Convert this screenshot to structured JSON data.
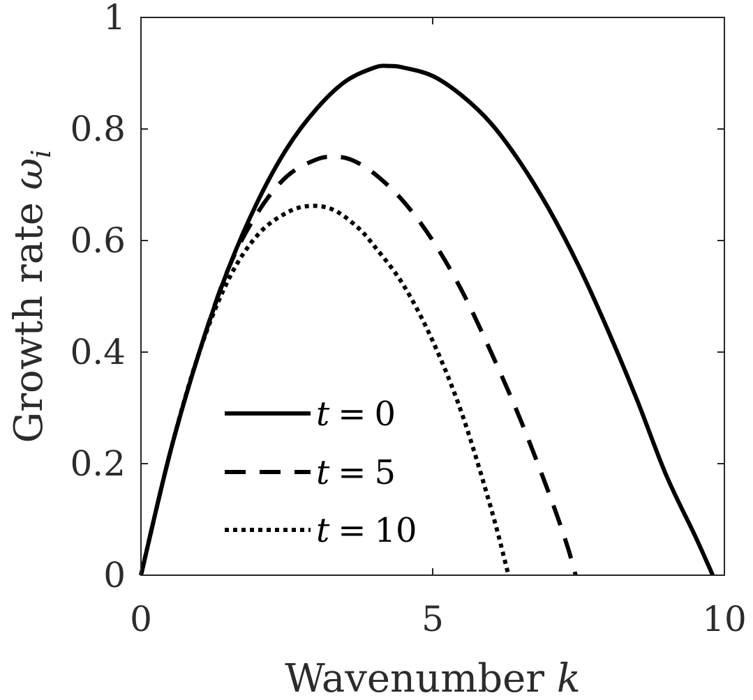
{
  "chart_data": {
    "type": "line",
    "xlabel": {
      "text": "Wavenumber ",
      "symbol": "k"
    },
    "ylabel": {
      "text": "Growth rate ",
      "symbol": "ω",
      "subscript": "i"
    },
    "xlim": [
      0,
      10
    ],
    "ylim": [
      0,
      1
    ],
    "xticks": [
      0,
      5,
      10
    ],
    "xtick_labels": [
      "0",
      "5",
      "10"
    ],
    "yticks": [
      0,
      0.2,
      0.4,
      0.6,
      0.8,
      1
    ],
    "ytick_labels": [
      "0",
      "0.2",
      "0.4",
      "0.6",
      "0.8",
      "1"
    ],
    "grid": false,
    "legend_position": "lower-left",
    "series": [
      {
        "name": "t = 0",
        "var": "t",
        "eq": "=",
        "val": "0",
        "style": "solid",
        "x": [
          0,
          0.5,
          1,
          1.5,
          2,
          2.5,
          3,
          3.5,
          4,
          4.25,
          4.5,
          5,
          5.5,
          6,
          6.5,
          7,
          7.5,
          8,
          8.5,
          9,
          9.5,
          9.8
        ],
        "y": [
          0,
          0.22,
          0.4,
          0.55,
          0.67,
          0.765,
          0.835,
          0.885,
          0.91,
          0.913,
          0.91,
          0.895,
          0.86,
          0.81,
          0.74,
          0.655,
          0.555,
          0.44,
          0.315,
          0.18,
          0.07,
          0
        ]
      },
      {
        "name": "t = 5",
        "var": "t",
        "eq": "=",
        "val": "5",
        "style": "dashed",
        "x": [
          0,
          0.5,
          1,
          1.5,
          2,
          2.5,
          3,
          3.3,
          3.6,
          4,
          4.5,
          5,
          5.5,
          6,
          6.5,
          7,
          7.3,
          7.45
        ],
        "y": [
          0,
          0.22,
          0.4,
          0.55,
          0.65,
          0.715,
          0.745,
          0.75,
          0.745,
          0.72,
          0.67,
          0.6,
          0.51,
          0.4,
          0.28,
          0.145,
          0.055,
          0
        ]
      },
      {
        "name": "t = 10",
        "var": "t",
        "eq": "=",
        "val": "10",
        "style": "dotted",
        "x": [
          0,
          0.5,
          1,
          1.5,
          2,
          2.5,
          2.9,
          3.3,
          3.7,
          4,
          4.5,
          5,
          5.5,
          6,
          6.3
        ],
        "y": [
          0,
          0.22,
          0.4,
          0.53,
          0.61,
          0.65,
          0.662,
          0.655,
          0.625,
          0.59,
          0.52,
          0.42,
          0.29,
          0.12,
          0
        ]
      }
    ]
  }
}
